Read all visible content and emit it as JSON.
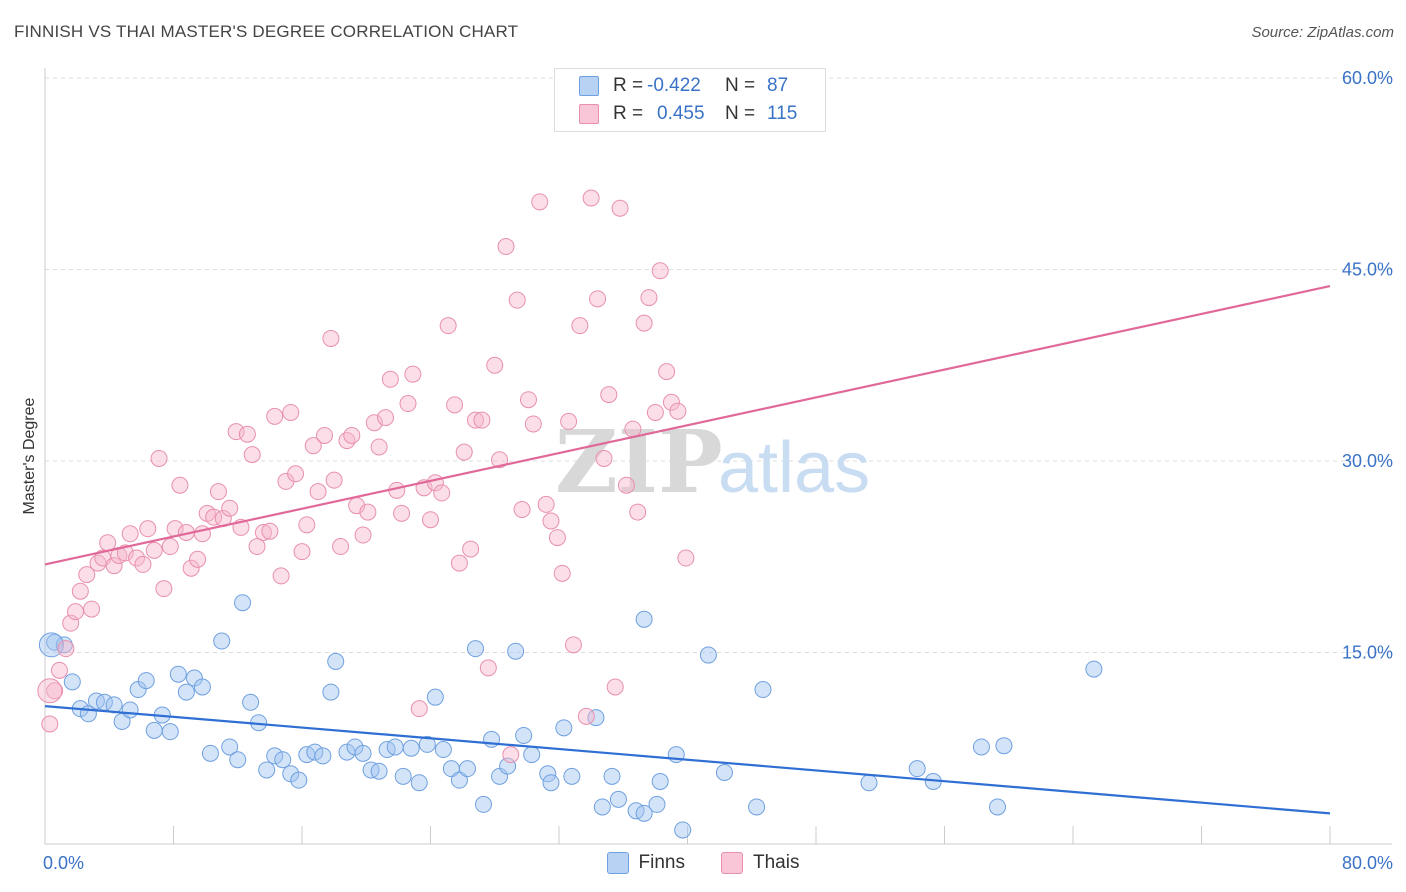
{
  "title": "FINNISH VS THAI MASTER'S DEGREE CORRELATION CHART",
  "source": "Source: ZipAtlas.com",
  "watermark": {
    "zip": "ZIP",
    "atlas": "atlas"
  },
  "legend": {
    "rows": [
      {
        "r_label": "R =",
        "r_value": "-0.422",
        "n_label": "N =",
        "n_value": "87",
        "color": "#6fa0e0",
        "fill": "#b8d2f3"
      },
      {
        "r_label": "R =",
        "r_value": "0.455",
        "n_label": "N =",
        "n_value": "115",
        "color": "#e890ae",
        "fill": "#f8c6d6"
      }
    ]
  },
  "bottom_legend": {
    "finns": "Finns",
    "thais": "Thais"
  },
  "colors": {
    "finns_line": "#2f6fd4",
    "thais_line": "#e0699a",
    "axis_text": "#3a72c7"
  },
  "chart_data": {
    "type": "scatter",
    "title": "FINNISH VS THAI MASTER'S DEGREE CORRELATION CHART",
    "xlabel": "",
    "ylabel": "Master's Degree",
    "xlim": [
      0,
      80
    ],
    "ylim": [
      0,
      60
    ],
    "x_tick_labels": [
      "0.0%",
      "80.0%"
    ],
    "y_tick_labels": [
      "15.0%",
      "30.0%",
      "45.0%",
      "60.0%"
    ],
    "y_ticks": [
      15,
      30,
      45,
      60
    ],
    "grid": true,
    "legend_placement": "top-center",
    "series": [
      {
        "name": "Finns",
        "r": -0.422,
        "n": 87,
        "trend": {
          "x": [
            0,
            80
          ],
          "y": [
            10.8,
            2.4
          ]
        },
        "points": [
          [
            0.6,
            15.8
          ],
          [
            1.2,
            15.6
          ],
          [
            1.7,
            12.7
          ],
          [
            2.2,
            10.6
          ],
          [
            2.7,
            10.2
          ],
          [
            3.2,
            11.2
          ],
          [
            3.7,
            11.1
          ],
          [
            4.3,
            10.9
          ],
          [
            4.8,
            9.6
          ],
          [
            5.3,
            10.5
          ],
          [
            5.8,
            12.1
          ],
          [
            6.3,
            12.8
          ],
          [
            6.8,
            8.9
          ],
          [
            7.3,
            10.1
          ],
          [
            7.8,
            8.8
          ],
          [
            8.3,
            13.3
          ],
          [
            8.8,
            11.9
          ],
          [
            9.3,
            13.0
          ],
          [
            9.8,
            12.3
          ],
          [
            10.3,
            7.1
          ],
          [
            11.0,
            15.9
          ],
          [
            11.5,
            7.6
          ],
          [
            12.0,
            6.6
          ],
          [
            12.3,
            18.9
          ],
          [
            12.8,
            11.1
          ],
          [
            13.3,
            9.5
          ],
          [
            13.8,
            5.8
          ],
          [
            14.3,
            6.9
          ],
          [
            14.8,
            6.6
          ],
          [
            15.3,
            5.5
          ],
          [
            15.8,
            5.0
          ],
          [
            16.3,
            7.0
          ],
          [
            16.8,
            7.2
          ],
          [
            17.3,
            6.9
          ],
          [
            17.8,
            11.9
          ],
          [
            18.1,
            14.3
          ],
          [
            18.8,
            7.2
          ],
          [
            19.3,
            7.6
          ],
          [
            19.8,
            7.1
          ],
          [
            20.3,
            5.8
          ],
          [
            20.8,
            5.7
          ],
          [
            21.3,
            7.4
          ],
          [
            21.8,
            7.6
          ],
          [
            22.3,
            5.3
          ],
          [
            22.8,
            7.5
          ],
          [
            23.3,
            4.8
          ],
          [
            23.8,
            7.8
          ],
          [
            24.3,
            11.5
          ],
          [
            24.8,
            7.4
          ],
          [
            25.3,
            5.9
          ],
          [
            25.8,
            5.0
          ],
          [
            26.3,
            5.9
          ],
          [
            26.8,
            15.3
          ],
          [
            27.3,
            3.1
          ],
          [
            27.8,
            8.2
          ],
          [
            28.3,
            5.3
          ],
          [
            28.8,
            6.1
          ],
          [
            29.3,
            15.1
          ],
          [
            29.8,
            8.5
          ],
          [
            30.3,
            7.0
          ],
          [
            31.3,
            5.5
          ],
          [
            31.5,
            4.8
          ],
          [
            32.3,
            9.1
          ],
          [
            32.8,
            5.3
          ],
          [
            34.3,
            9.9
          ],
          [
            34.7,
            2.9
          ],
          [
            35.3,
            5.3
          ],
          [
            35.7,
            3.5
          ],
          [
            36.8,
            2.6
          ],
          [
            37.3,
            17.6
          ],
          [
            37.3,
            2.4
          ],
          [
            38.1,
            3.1
          ],
          [
            38.3,
            4.9
          ],
          [
            39.3,
            7.0
          ],
          [
            39.7,
            1.1
          ],
          [
            41.3,
            14.8
          ],
          [
            42.3,
            5.6
          ],
          [
            44.3,
            2.9
          ],
          [
            44.7,
            12.1
          ],
          [
            51.3,
            4.8
          ],
          [
            54.3,
            5.9
          ],
          [
            55.3,
            4.9
          ],
          [
            58.3,
            7.6
          ],
          [
            59.3,
            2.9
          ],
          [
            59.7,
            7.7
          ],
          [
            65.3,
            13.7
          ],
          [
            0.4,
            15.6
          ]
        ]
      },
      {
        "name": "Thais",
        "r": 0.455,
        "n": 115,
        "trend": {
          "x": [
            0,
            80
          ],
          "y": [
            21.9,
            43.7
          ]
        },
        "points": [
          [
            0.3,
            9.4
          ],
          [
            0.6,
            12.0
          ],
          [
            0.9,
            13.6
          ],
          [
            1.3,
            15.3
          ],
          [
            1.6,
            17.3
          ],
          [
            1.9,
            18.2
          ],
          [
            2.2,
            19.8
          ],
          [
            2.6,
            21.1
          ],
          [
            2.9,
            18.4
          ],
          [
            3.3,
            22.0
          ],
          [
            3.6,
            22.4
          ],
          [
            3.9,
            23.6
          ],
          [
            4.3,
            21.8
          ],
          [
            4.6,
            22.6
          ],
          [
            5.0,
            22.8
          ],
          [
            5.3,
            24.3
          ],
          [
            5.7,
            22.4
          ],
          [
            6.1,
            21.9
          ],
          [
            6.4,
            24.7
          ],
          [
            6.8,
            23.0
          ],
          [
            7.1,
            30.2
          ],
          [
            7.4,
            20.0
          ],
          [
            7.8,
            23.3
          ],
          [
            8.1,
            24.7
          ],
          [
            8.4,
            28.1
          ],
          [
            8.8,
            24.4
          ],
          [
            9.1,
            21.6
          ],
          [
            9.5,
            22.3
          ],
          [
            9.8,
            24.3
          ],
          [
            10.1,
            25.9
          ],
          [
            10.5,
            25.6
          ],
          [
            10.8,
            27.6
          ],
          [
            11.1,
            25.5
          ],
          [
            11.5,
            26.3
          ],
          [
            11.9,
            32.3
          ],
          [
            12.2,
            24.8
          ],
          [
            12.6,
            32.1
          ],
          [
            12.9,
            30.5
          ],
          [
            13.2,
            23.3
          ],
          [
            13.6,
            24.4
          ],
          [
            14.0,
            24.5
          ],
          [
            14.3,
            33.5
          ],
          [
            14.7,
            21.0
          ],
          [
            15.0,
            28.4
          ],
          [
            15.3,
            33.8
          ],
          [
            15.6,
            29.0
          ],
          [
            16.0,
            22.9
          ],
          [
            16.3,
            25.0
          ],
          [
            16.7,
            31.2
          ],
          [
            17.0,
            27.6
          ],
          [
            17.4,
            32.0
          ],
          [
            17.8,
            39.6
          ],
          [
            18.0,
            28.5
          ],
          [
            18.4,
            23.3
          ],
          [
            18.8,
            31.6
          ],
          [
            19.1,
            32.0
          ],
          [
            19.4,
            26.5
          ],
          [
            19.8,
            24.2
          ],
          [
            20.1,
            26.0
          ],
          [
            20.5,
            33.0
          ],
          [
            20.8,
            31.1
          ],
          [
            21.2,
            33.4
          ],
          [
            21.5,
            36.4
          ],
          [
            21.9,
            27.7
          ],
          [
            22.2,
            25.9
          ],
          [
            22.6,
            34.5
          ],
          [
            22.9,
            36.8
          ],
          [
            23.3,
            10.6
          ],
          [
            23.6,
            27.9
          ],
          [
            24.0,
            25.4
          ],
          [
            24.3,
            28.3
          ],
          [
            24.7,
            27.5
          ],
          [
            25.1,
            40.6
          ],
          [
            25.5,
            34.4
          ],
          [
            25.8,
            22.0
          ],
          [
            26.1,
            30.7
          ],
          [
            26.5,
            23.1
          ],
          [
            26.8,
            33.2
          ],
          [
            27.2,
            33.2
          ],
          [
            27.6,
            13.8
          ],
          [
            28.0,
            37.5
          ],
          [
            28.3,
            30.1
          ],
          [
            28.7,
            46.8
          ],
          [
            29.0,
            7.0
          ],
          [
            29.4,
            42.6
          ],
          [
            29.7,
            26.2
          ],
          [
            30.1,
            34.8
          ],
          [
            30.4,
            32.9
          ],
          [
            30.8,
            50.3
          ],
          [
            31.2,
            26.6
          ],
          [
            31.5,
            25.3
          ],
          [
            31.9,
            24.0
          ],
          [
            32.2,
            21.2
          ],
          [
            32.6,
            33.1
          ],
          [
            32.9,
            15.6
          ],
          [
            33.3,
            40.6
          ],
          [
            33.7,
            10.0
          ],
          [
            34.0,
            50.6
          ],
          [
            34.4,
            42.7
          ],
          [
            34.8,
            30.2
          ],
          [
            35.1,
            35.2
          ],
          [
            35.5,
            12.3
          ],
          [
            35.8,
            49.8
          ],
          [
            36.2,
            28.1
          ],
          [
            36.6,
            32.5
          ],
          [
            36.9,
            26.0
          ],
          [
            37.3,
            40.8
          ],
          [
            37.6,
            42.8
          ],
          [
            38.0,
            33.8
          ],
          [
            38.3,
            44.9
          ],
          [
            38.7,
            37.0
          ],
          [
            39.0,
            34.6
          ],
          [
            39.4,
            33.9
          ],
          [
            39.9,
            22.4
          ],
          [
            0.3,
            12.0
          ]
        ]
      }
    ]
  }
}
